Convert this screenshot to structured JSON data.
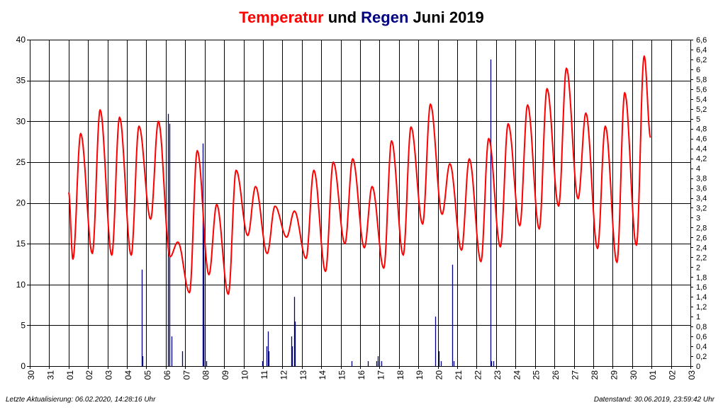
{
  "chart_data": {
    "type": "line",
    "title": {
      "part1": "Temperatur",
      "part2": " und ",
      "part3": "Regen",
      "part4": " Juni 2019"
    },
    "colors": {
      "temperature": "#ff0000",
      "rain": "#000080",
      "grid": "#000000",
      "title_red": "#ff0000",
      "title_blue": "#000080"
    },
    "x_tick_labels": [
      "30",
      "31",
      "01",
      "02",
      "03",
      "04",
      "05",
      "06",
      "07",
      "08",
      "09",
      "10",
      "11",
      "12",
      "13",
      "14",
      "15",
      "16",
      "17",
      "18",
      "19",
      "20",
      "21",
      "22",
      "23",
      "24",
      "25",
      "26",
      "27",
      "28",
      "29",
      "30",
      "01",
      "02",
      "03"
    ],
    "x_range_days": [
      0,
      34
    ],
    "y_left": {
      "range": [
        0,
        40
      ],
      "ticks": [
        "0",
        "5",
        "10",
        "15",
        "20",
        "25",
        "30",
        "35",
        "40"
      ]
    },
    "y_right": {
      "range": [
        0,
        6.6
      ],
      "ticks": [
        "0",
        "0,2",
        "0,4",
        "0,6",
        "0,8",
        "1",
        "1,2",
        "1,4",
        "1,6",
        "1,8",
        "2",
        "2,2",
        "2,4",
        "2,6",
        "2,8",
        "3",
        "3,2",
        "3,4",
        "3,6",
        "3,8",
        "4",
        "4,2",
        "4,4",
        "4,6",
        "4,8",
        "5",
        "5,2",
        "5,4",
        "5,6",
        "5,8",
        "6",
        "6,2",
        "6,4",
        "6,6"
      ]
    },
    "grid": true,
    "temperature_daily_extremes": {
      "note_days": "index 0 = 01 June",
      "min": [
        13.1,
        13.8,
        13.6,
        13.6,
        18.0,
        13.4,
        9.0,
        11.2,
        8.8,
        16.0,
        13.8,
        15.8,
        13.2,
        11.6,
        15.0,
        14.5,
        12.0,
        13.6,
        17.4,
        18.6,
        14.2,
        12.8,
        14.6,
        17.2,
        16.8,
        19.6,
        20.5,
        14.4,
        12.7,
        14.8
      ],
      "max": [
        28.5,
        31.4,
        30.5,
        29.4,
        30.0,
        15.2,
        26.4,
        19.8,
        24.0,
        22.0,
        19.6,
        19.0,
        24.0,
        25.0,
        25.4,
        22.0,
        27.6,
        29.3,
        32.1,
        24.8,
        25.4,
        27.9,
        29.7,
        32.0,
        34.0,
        36.5,
        31.0,
        29.4,
        33.5,
        38.0
      ]
    },
    "rain_events": [
      {
        "day": 3.75,
        "value": 1.95
      },
      {
        "day": 3.8,
        "value": 0.2
      },
      {
        "day": 5.1,
        "value": 5.1
      },
      {
        "day": 5.2,
        "value": 4.9
      },
      {
        "day": 5.3,
        "value": 0.6
      },
      {
        "day": 5.85,
        "value": 0.3
      },
      {
        "day": 6.9,
        "value": 4.5
      },
      {
        "day": 6.95,
        "value": 2.8
      },
      {
        "day": 7.0,
        "value": 0.8
      },
      {
        "day": 7.1,
        "value": 0.1
      },
      {
        "day": 9.95,
        "value": 0.1
      },
      {
        "day": 10.2,
        "value": 0.4
      },
      {
        "day": 10.25,
        "value": 0.7
      },
      {
        "day": 10.3,
        "value": 0.3
      },
      {
        "day": 11.45,
        "value": 0.6
      },
      {
        "day": 11.5,
        "value": 0.4
      },
      {
        "day": 11.6,
        "value": 1.4
      },
      {
        "day": 11.65,
        "value": 0.9
      },
      {
        "day": 14.55,
        "value": 0.1
      },
      {
        "day": 15.4,
        "value": 0.1
      },
      {
        "day": 15.85,
        "value": 0.1
      },
      {
        "day": 15.9,
        "value": 0.2
      },
      {
        "day": 16.0,
        "value": 0.1
      },
      {
        "day": 16.1,
        "value": 0.1
      },
      {
        "day": 18.85,
        "value": 1.0
      },
      {
        "day": 19.05,
        "value": 0.3
      },
      {
        "day": 19.15,
        "value": 0.1
      },
      {
        "day": 19.75,
        "value": 2.05
      },
      {
        "day": 19.8,
        "value": 0.1
      },
      {
        "day": 21.7,
        "value": 6.2
      },
      {
        "day": 21.75,
        "value": 0.1
      },
      {
        "day": 21.85,
        "value": 0.1
      }
    ]
  },
  "footer": {
    "left": "Letzte Aktualisierung: 06.02.2020, 14:28:16 Uhr",
    "right": "Datenstand: 30.06.2019, 23:59:42 Uhr"
  }
}
